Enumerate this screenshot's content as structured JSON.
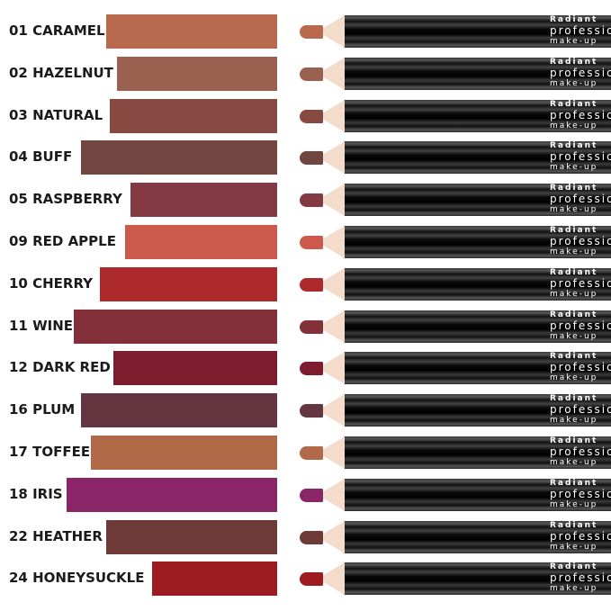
{
  "pencil_text": {
    "line1": "Radiant",
    "line2": "professional",
    "line3": "make-up"
  },
  "shades": [
    {
      "label": "01 CARAMEL",
      "color": "#b8694e"
    },
    {
      "label": "02 HAZELNUT",
      "color": "#9a6050"
    },
    {
      "label": "03 NATURAL",
      "color": "#864a42"
    },
    {
      "label": "04 BUFF",
      "color": "#714540"
    },
    {
      "label": "05 RASPBERRY",
      "color": "#833a42"
    },
    {
      "label": "09 RED APPLE",
      "color": "#cd5a4c"
    },
    {
      "label": "10 CHERRY",
      "color": "#ad2a2c"
    },
    {
      "label": "11 WINE",
      "color": "#84303b"
    },
    {
      "label": "12 DARK RED",
      "color": "#7c1c2c"
    },
    {
      "label": "16 PLUM",
      "color": "#643640"
    },
    {
      "label": "17 TOFFEE",
      "color": "#b06a48"
    },
    {
      "label": "18 IRIS",
      "color": "#8a2567"
    },
    {
      "label": "22 HEATHER",
      "color": "#6e3a38"
    },
    {
      "label": "24 HONEYSUCKLE",
      "color": "#9c1c22"
    }
  ]
}
